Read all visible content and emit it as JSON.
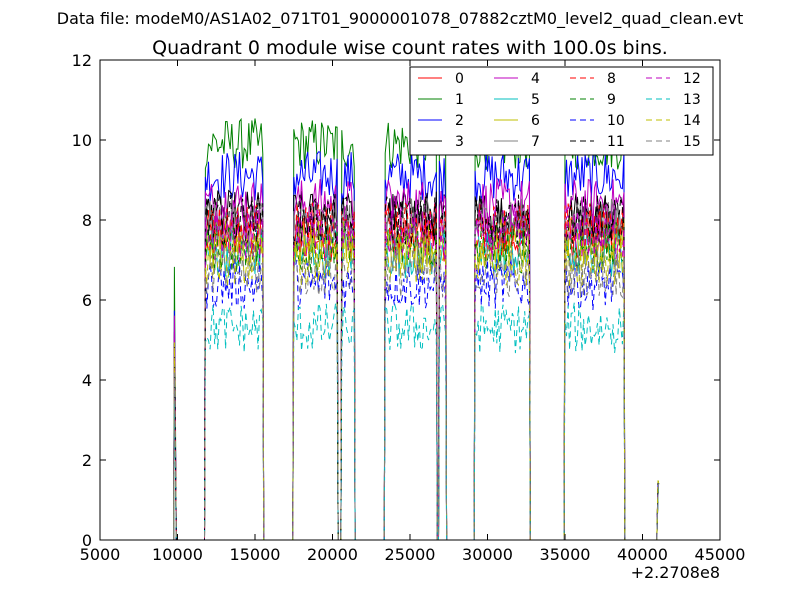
{
  "header": {
    "data_file": "Data file: modeM0/AS1A02_071T01_9000001078_07882cztM0_level2_quad_clean.evt"
  },
  "chart_data": {
    "type": "line",
    "title": "Quadrant 0 module wise count rates with 100.0s bins.",
    "xlabel": "",
    "ylabel": "",
    "xlim": [
      5000,
      45000
    ],
    "ylim": [
      0,
      12
    ],
    "x_offset_label": "+2.2708e8",
    "x_ticks": [
      5000,
      10000,
      15000,
      20000,
      25000,
      30000,
      35000,
      40000,
      45000
    ],
    "x_tick_labels": [
      "5000",
      "10000",
      "15000",
      "20000",
      "25000",
      "30000",
      "35000",
      "40000",
      "45000"
    ],
    "y_ticks": [
      0,
      2,
      4,
      6,
      8,
      10,
      12
    ],
    "y_tick_labels": [
      "0",
      "2",
      "4",
      "6",
      "8",
      "10",
      "12"
    ],
    "grid": false,
    "legend_position": "top-right",
    "legend_columns": 4,
    "spikes": [
      {
        "x": 9800,
        "value": 6.0
      },
      {
        "x": 41000,
        "value": 1.5
      }
    ],
    "segments": [
      {
        "start": 11800,
        "end": 15500
      },
      {
        "start": 17500,
        "end": 20300
      },
      {
        "start": 20600,
        "end": 21400
      },
      {
        "start": 23400,
        "end": 26700
      },
      {
        "start": 26900,
        "end": 27300
      },
      {
        "start": 29200,
        "end": 32700
      },
      {
        "start": 35000,
        "end": 38800
      }
    ],
    "series": [
      {
        "name": "0",
        "color": "#ff0000",
        "dash": "solid",
        "mean": 7.6
      },
      {
        "name": "1",
        "color": "#008000",
        "dash": "solid",
        "mean": 9.9
      },
      {
        "name": "2",
        "color": "#0000ff",
        "dash": "solid",
        "mean": 9.1
      },
      {
        "name": "3",
        "color": "#000000",
        "dash": "solid",
        "mean": 8.1
      },
      {
        "name": "4",
        "color": "#bf00bf",
        "dash": "solid",
        "mean": 8.4
      },
      {
        "name": "5",
        "color": "#00bfbf",
        "dash": "solid",
        "mean": 7.2
      },
      {
        "name": "6",
        "color": "#bfbf00",
        "dash": "solid",
        "mean": 7.4
      },
      {
        "name": "7",
        "color": "#808080",
        "dash": "solid",
        "mean": 7.9
      },
      {
        "name": "8",
        "color": "#ff0000",
        "dash": "dashed",
        "mean": 7.8
      },
      {
        "name": "9",
        "color": "#008000",
        "dash": "dashed",
        "mean": 7.3
      },
      {
        "name": "10",
        "color": "#0000ff",
        "dash": "dashed",
        "mean": 6.4
      },
      {
        "name": "11",
        "color": "#000000",
        "dash": "dashed",
        "mean": 8.0
      },
      {
        "name": "12",
        "color": "#bf00bf",
        "dash": "dashed",
        "mean": 7.6
      },
      {
        "name": "13",
        "color": "#00bfbf",
        "dash": "dashed",
        "mean": 5.3
      },
      {
        "name": "14",
        "color": "#bfbf00",
        "dash": "dashed",
        "mean": 7.0
      },
      {
        "name": "15",
        "color": "#808080",
        "dash": "dashed",
        "mean": 6.7
      }
    ]
  }
}
